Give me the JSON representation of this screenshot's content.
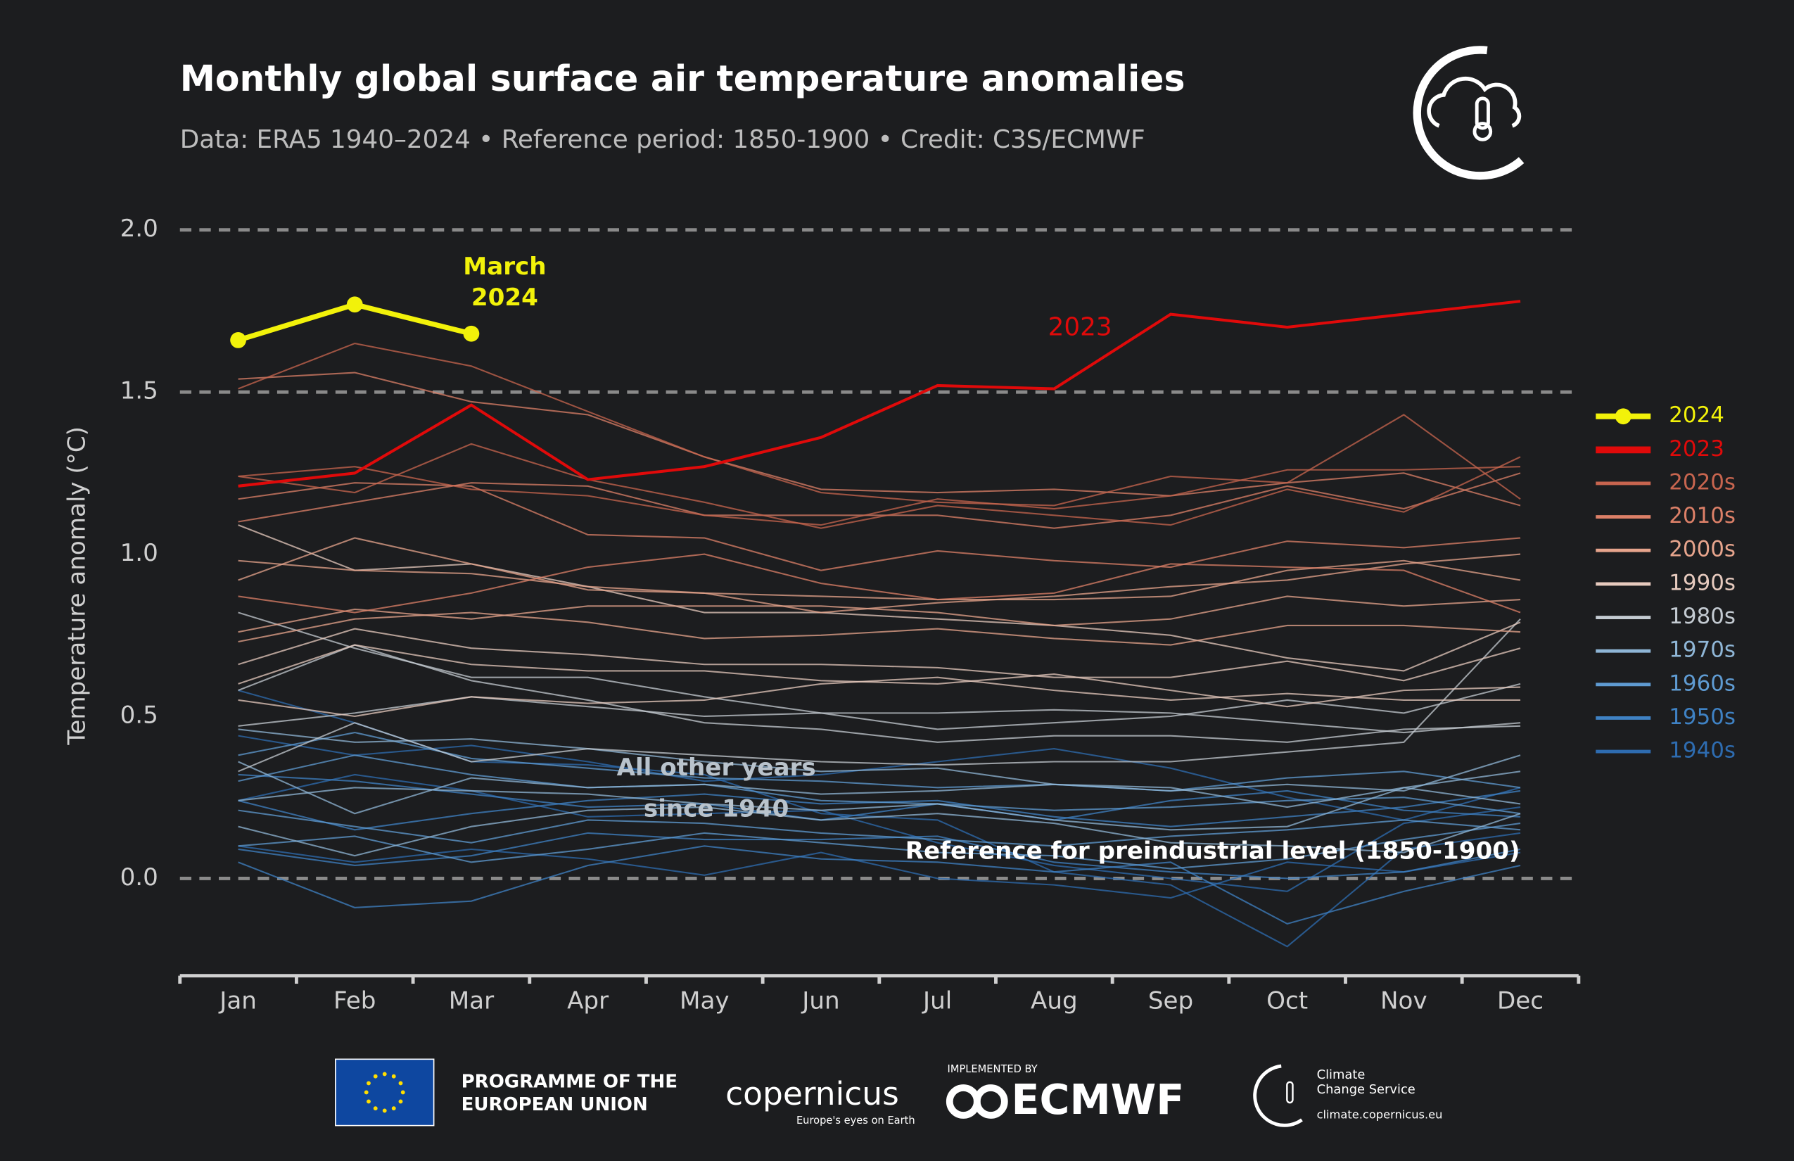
{
  "chart_data": {
    "type": "line",
    "title": "Monthly global surface air temperature anomalies",
    "subtitle": "Data: ERA5 1940–2024 • Reference period: 1850-1900 • Credit: C3S/ECMWF",
    "ylabel": "Temperature anomaly (°C)",
    "categories": [
      "Jan",
      "Feb",
      "Mar",
      "Apr",
      "May",
      "Jun",
      "Jul",
      "Aug",
      "Sep",
      "Oct",
      "Nov",
      "Dec"
    ],
    "ylim": [
      -0.3,
      2.0
    ],
    "yticks": [
      {
        "value": 2,
        "label": "2.0"
      },
      {
        "value": 1.5,
        "label": "1.5"
      },
      {
        "value": 1,
        "label": "1.0"
      },
      {
        "value": 0.5,
        "label": "0.5"
      },
      {
        "value": 0,
        "label": "0.0"
      }
    ],
    "grid_values": [
      2,
      1.5,
      0
    ],
    "legend": "right",
    "annotations": [
      "March",
      "2024",
      "2023",
      "All other years",
      "since 1940",
      "Reference for preindustrial level (1850-1900)"
    ],
    "series": [
      {
        "name": "2024",
        "color": "#f2f20a",
        "values": [
          1.66,
          1.77,
          1.68,
          null,
          null,
          null,
          null,
          null,
          null,
          null,
          null,
          null
        ]
      },
      {
        "name": "2023",
        "color": "#e00a0a",
        "values": [
          1.21,
          1.25,
          1.46,
          1.23,
          1.27,
          1.36,
          1.52,
          1.51,
          1.74,
          1.7,
          1.74,
          1.78
        ]
      },
      {
        "name": "2020s",
        "color": "#c8654f",
        "lines": [
          [
            1.51,
            1.65,
            1.58,
            1.44,
            1.3,
            1.19,
            1.16,
            1.15,
            1.24,
            1.22,
            1.43,
            1.17
          ],
          [
            1.24,
            1.27,
            1.2,
            1.18,
            1.12,
            1.09,
            1.17,
            1.14,
            1.18,
            1.26,
            1.26,
            1.27
          ],
          [
            1.24,
            1.19,
            1.34,
            1.23,
            1.16,
            1.08,
            1.15,
            1.12,
            1.09,
            1.2,
            1.13,
            1.3
          ]
        ]
      },
      {
        "name": "2010s",
        "color": "#dc8068",
        "lines": [
          [
            1.54,
            1.56,
            1.47,
            1.43,
            1.3,
            1.2,
            1.19,
            1.2,
            1.18,
            1.22,
            1.25,
            1.15
          ],
          [
            1.1,
            1.16,
            1.22,
            1.21,
            1.12,
            1.12,
            1.12,
            1.08,
            1.12,
            1.21,
            1.14,
            1.25
          ],
          [
            1.17,
            1.22,
            1.21,
            1.06,
            1.05,
            0.95,
            1.01,
            0.98,
            0.96,
            1.04,
            1.02,
            1.05
          ],
          [
            0.87,
            0.82,
            0.88,
            0.96,
            1.0,
            0.91,
            0.86,
            0.88,
            0.97,
            0.96,
            0.95,
            0.82
          ]
        ]
      },
      {
        "name": "2000s",
        "color": "#e6a48c",
        "lines": [
          [
            0.98,
            0.95,
            0.94,
            0.9,
            0.88,
            0.87,
            0.86,
            0.86,
            0.87,
            0.95,
            0.98,
            0.92
          ],
          [
            0.76,
            0.83,
            0.8,
            0.84,
            0.84,
            0.84,
            0.82,
            0.78,
            0.8,
            0.87,
            0.84,
            0.86
          ],
          [
            0.92,
            1.05,
            0.97,
            0.89,
            0.88,
            0.82,
            0.85,
            0.87,
            0.9,
            0.92,
            0.97,
            1.0
          ],
          [
            0.73,
            0.8,
            0.82,
            0.79,
            0.74,
            0.75,
            0.77,
            0.74,
            0.72,
            0.78,
            0.78,
            0.76
          ]
        ]
      },
      {
        "name": "1990s",
        "color": "#e6cabe",
        "lines": [
          [
            1.09,
            0.95,
            0.97,
            0.9,
            0.82,
            0.82,
            0.8,
            0.78,
            0.75,
            0.68,
            0.64,
            0.79
          ],
          [
            0.66,
            0.77,
            0.71,
            0.69,
            0.66,
            0.66,
            0.65,
            0.62,
            0.62,
            0.67,
            0.61,
            0.71
          ],
          [
            0.55,
            0.5,
            0.56,
            0.54,
            0.55,
            0.6,
            0.62,
            0.58,
            0.55,
            0.57,
            0.55,
            0.55
          ],
          [
            0.6,
            0.72,
            0.66,
            0.64,
            0.64,
            0.61,
            0.6,
            0.63,
            0.58,
            0.53,
            0.58,
            0.59
          ]
        ]
      },
      {
        "name": "1980s",
        "color": "#c4cbd2",
        "lines": [
          [
            0.82,
            0.71,
            0.62,
            0.62,
            0.56,
            0.51,
            0.51,
            0.52,
            0.51,
            0.48,
            0.45,
            0.48
          ],
          [
            0.47,
            0.51,
            0.56,
            0.53,
            0.5,
            0.51,
            0.46,
            0.48,
            0.5,
            0.55,
            0.51,
            0.6
          ],
          [
            0.58,
            0.72,
            0.61,
            0.55,
            0.48,
            0.46,
            0.42,
            0.44,
            0.44,
            0.42,
            0.46,
            0.47
          ],
          [
            0.33,
            0.48,
            0.36,
            0.4,
            0.38,
            0.36,
            0.35,
            0.36,
            0.36,
            0.39,
            0.42,
            0.8
          ]
        ]
      },
      {
        "name": "1970s",
        "color": "#8fb6d6",
        "lines": [
          [
            0.46,
            0.42,
            0.43,
            0.4,
            0.36,
            0.33,
            0.34,
            0.29,
            0.27,
            0.29,
            0.27,
            0.38
          ],
          [
            0.24,
            0.28,
            0.27,
            0.26,
            0.23,
            0.21,
            0.23,
            0.18,
            0.15,
            0.16,
            0.28,
            0.33
          ],
          [
            0.36,
            0.2,
            0.31,
            0.28,
            0.29,
            0.26,
            0.27,
            0.29,
            0.28,
            0.22,
            0.28,
            0.23
          ],
          [
            0.16,
            0.07,
            0.16,
            0.21,
            0.22,
            0.18,
            0.2,
            0.17,
            0.11,
            0.1,
            0.08,
            0.2
          ]
        ]
      },
      {
        "name": "1960s",
        "color": "#5f9bd2",
        "lines": [
          [
            0.38,
            0.45,
            0.37,
            0.34,
            0.31,
            0.3,
            0.28,
            0.29,
            0.27,
            0.31,
            0.33,
            0.28
          ],
          [
            0.3,
            0.38,
            0.32,
            0.28,
            0.29,
            0.24,
            0.23,
            0.21,
            0.22,
            0.24,
            0.25,
            0.2
          ],
          [
            0.21,
            0.16,
            0.11,
            0.18,
            0.17,
            0.14,
            0.12,
            0.1,
            0.13,
            0.15,
            0.18,
            0.15
          ],
          [
            0.1,
            0.13,
            0.05,
            0.09,
            0.14,
            0.11,
            0.08,
            0.07,
            0.03,
            0.06,
            0.12,
            0.17
          ]
        ]
      },
      {
        "name": "1950s",
        "color": "#3f82c4",
        "lines": [
          [
            0.09,
            0.04,
            0.07,
            0.14,
            0.12,
            0.12,
            0.13,
            0.05,
            0.02,
            0.0,
            0.02,
            0.09
          ],
          [
            0.24,
            0.15,
            0.2,
            0.24,
            0.26,
            0.23,
            0.24,
            0.19,
            0.16,
            0.19,
            0.22,
            0.27
          ],
          [
            0.05,
            -0.09,
            -0.07,
            0.04,
            0.1,
            0.06,
            0.05,
            0.02,
            0.05,
            -0.14,
            -0.04,
            0.04
          ],
          [
            0.32,
            0.3,
            0.26,
            0.22,
            0.23,
            0.18,
            0.23,
            0.18,
            0.24,
            0.27,
            0.21,
            0.19
          ]
        ]
      },
      {
        "name": "1940s",
        "color": "#2e6cb0",
        "lines": [
          [
            0.44,
            0.38,
            0.41,
            0.36,
            0.3,
            0.32,
            0.36,
            0.4,
            0.34,
            0.25,
            0.18,
            0.28
          ],
          [
            0.24,
            0.32,
            0.27,
            0.19,
            0.2,
            0.21,
            0.11,
            0.04,
            0.0,
            -0.04,
            0.17,
            0.22
          ],
          [
            0.58,
            0.48,
            0.36,
            0.35,
            0.32,
            0.2,
            0.18,
            0.02,
            -0.02,
            -0.21,
            0.09,
            0.14
          ],
          [
            0.1,
            0.05,
            0.09,
            0.06,
            0.01,
            0.08,
            0.0,
            -0.02,
            -0.06,
            0.05,
            0.02,
            0.08
          ]
        ]
      }
    ]
  },
  "footer": {
    "eu": [
      "PROGRAMME OF THE",
      "EUROPEAN UNION"
    ],
    "copernicus": "copernicus",
    "copernicus_tagline": "Europe's eyes on Earth",
    "implemented_by": "IMPLEMENTED BY",
    "ecmwf": "ECMWF",
    "c3s": [
      "Climate",
      "Change Service"
    ],
    "c3s_url": "climate.copernicus.eu"
  }
}
